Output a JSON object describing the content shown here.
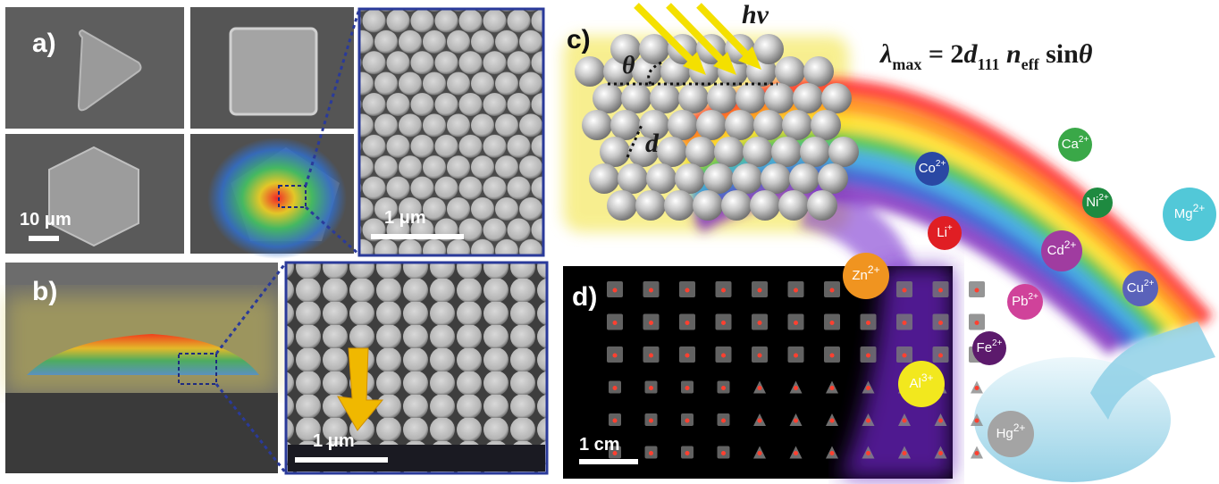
{
  "panels": {
    "a": {
      "label": "a)",
      "scale_bar": "10 μm",
      "zoom_scale_bar": "1 μm"
    },
    "b": {
      "label": "b)",
      "zoom_scale_bar": "1 μm"
    },
    "c": {
      "label": "c)",
      "light": "hν",
      "angle": "θ",
      "spacing": "d",
      "formula": {
        "lhs": "λ",
        "lhs_sub": "max",
        "eq": " = 2",
        "d": "d",
        "d_sub": "111",
        "n": " n",
        "n_sub": "eff",
        "tail": " sin",
        "theta": "θ"
      }
    },
    "d": {
      "label": "d)",
      "scale_bar": "1 cm"
    }
  },
  "ions": [
    {
      "symbol": "Co",
      "charge": "2+"
    },
    {
      "symbol": "Ca",
      "charge": "2+"
    },
    {
      "symbol": "Ni",
      "charge": "2+"
    },
    {
      "symbol": "Mg",
      "charge": "2+"
    },
    {
      "symbol": "Li",
      "charge": "+"
    },
    {
      "symbol": "Cd",
      "charge": "2+"
    },
    {
      "symbol": "Cu",
      "charge": "2+"
    },
    {
      "symbol": "Pb",
      "charge": "2+"
    },
    {
      "symbol": "Fe",
      "charge": "2+"
    },
    {
      "symbol": "Zn",
      "charge": "2+"
    },
    {
      "symbol": "Al",
      "charge": "3+"
    },
    {
      "symbol": "Hg",
      "charge": "2+"
    }
  ]
}
